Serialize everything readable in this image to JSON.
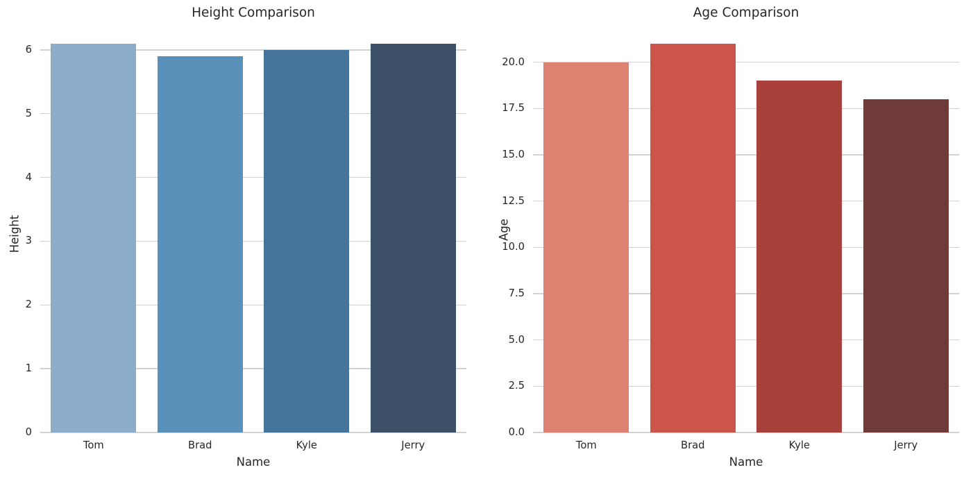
{
  "figure": {
    "background": "#ffffff",
    "text_color": "#262626",
    "grid_color": "#d2d2d2"
  },
  "chart_data": [
    {
      "type": "bar",
      "title": "Height Comparison",
      "xlabel": "Name",
      "ylabel": "Height",
      "categories": [
        "Tom",
        "Brad",
        "Kyle",
        "Jerry"
      ],
      "values": [
        6.1,
        5.9,
        6.0,
        6.1
      ],
      "ylim": [
        0,
        6.27
      ],
      "yticks": [
        0,
        1,
        2,
        3,
        4,
        5,
        6
      ],
      "ytick_labels": [
        "0",
        "1",
        "2",
        "3",
        "4",
        "5",
        "6"
      ],
      "bar_colors": [
        "#8BADC9",
        "#5991BA",
        "#45759B",
        "#3D5268"
      ],
      "grid": true,
      "legend_position": "none"
    },
    {
      "type": "bar",
      "title": "Age Comparison",
      "xlabel": "Name",
      "ylabel": "Age",
      "categories": [
        "Tom",
        "Brad",
        "Kyle",
        "Jerry"
      ],
      "values": [
        20,
        21,
        19,
        18
      ],
      "ylim": [
        0,
        21.6
      ],
      "yticks": [
        0,
        2.5,
        5,
        7.5,
        10,
        12.5,
        15,
        17.5,
        20
      ],
      "ytick_labels": [
        "0.0",
        "2.5",
        "5.0",
        "7.5",
        "10.0",
        "12.5",
        "15.0",
        "17.5",
        "20.0"
      ],
      "bar_colors": [
        "#DD8170",
        "#CB544B",
        "#A8413C",
        "#6E3B38"
      ],
      "grid": true,
      "legend_position": "none"
    }
  ]
}
